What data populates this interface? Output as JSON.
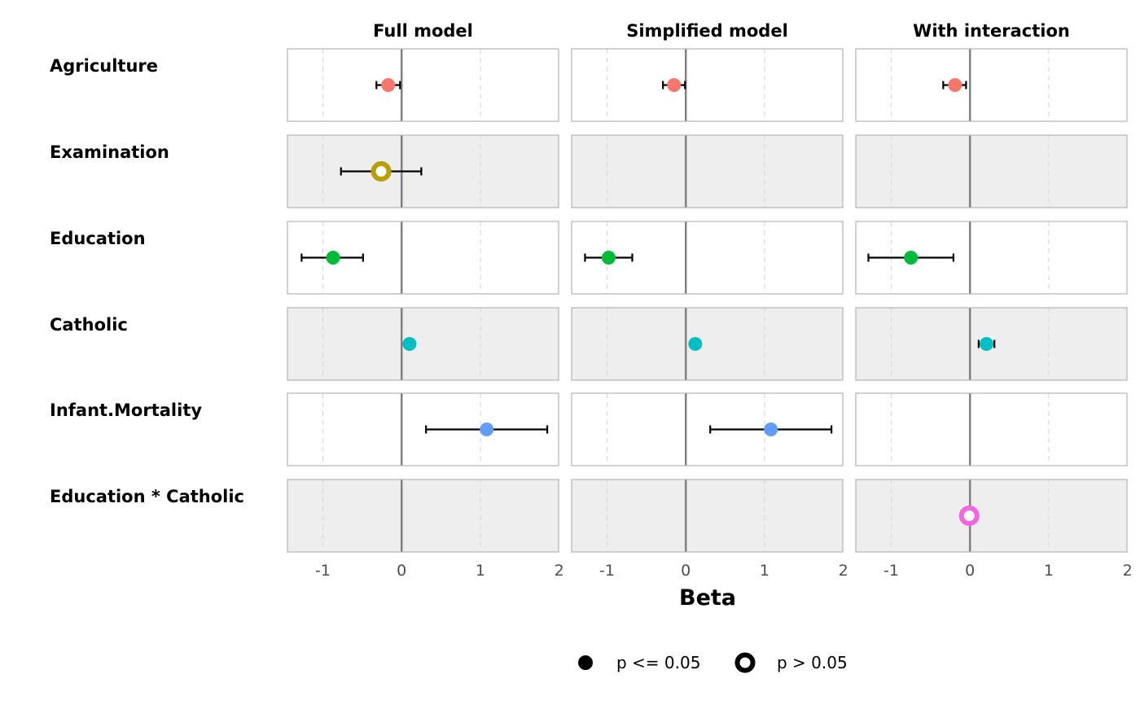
{
  "chart_data": {
    "type": "scatter",
    "subtype": "coefficient-plot-faceted",
    "xlabel": "Beta",
    "xlim": [
      -1.45,
      2
    ],
    "x_ticks": [
      "-1",
      "0",
      "1",
      "2"
    ],
    "x_tick_values": [
      -1,
      0,
      1,
      2
    ],
    "reference_line": 0,
    "models": [
      "Full model",
      "Simplified model",
      "With interaction"
    ],
    "terms": [
      "Agriculture",
      "Examination",
      "Education",
      "Catholic",
      "Infant.Mortality",
      "Education * Catholic"
    ],
    "term_colors": {
      "Agriculture": "#f8766d",
      "Examination": "#b79f00",
      "Education": "#00ba38",
      "Catholic": "#00bfc4",
      "Infant.Mortality": "#619cff",
      "Education * Catholic": "#f564e3"
    },
    "row_backgrounds": [
      "#ffffff",
      "#eeeeee",
      "#ffffff",
      "#eeeeee",
      "#ffffff",
      "#eeeeee"
    ],
    "estimates": [
      {
        "model": "Full model",
        "term": "Agriculture",
        "beta": -0.17,
        "lower": -0.32,
        "upper": -0.02,
        "significant": true
      },
      {
        "model": "Full model",
        "term": "Examination",
        "beta": -0.26,
        "lower": -0.77,
        "upper": 0.25,
        "significant": false
      },
      {
        "model": "Full model",
        "term": "Education",
        "beta": -0.87,
        "lower": -1.27,
        "upper": -0.49,
        "significant": true
      },
      {
        "model": "Full model",
        "term": "Catholic",
        "beta": 0.1,
        "lower": 0.04,
        "upper": 0.16,
        "significant": true
      },
      {
        "model": "Full model",
        "term": "Infant.Mortality",
        "beta": 1.08,
        "lower": 0.31,
        "upper": 1.85,
        "significant": true
      },
      {
        "model": "Simplified model",
        "term": "Agriculture",
        "beta": -0.15,
        "lower": -0.29,
        "upper": -0.01,
        "significant": true
      },
      {
        "model": "Simplified model",
        "term": "Education",
        "beta": -0.98,
        "lower": -1.28,
        "upper": -0.68,
        "significant": true
      },
      {
        "model": "Simplified model",
        "term": "Catholic",
        "beta": 0.12,
        "lower": 0.07,
        "upper": 0.18,
        "significant": true
      },
      {
        "model": "Simplified model",
        "term": "Infant.Mortality",
        "beta": 1.08,
        "lower": 0.31,
        "upper": 1.85,
        "significant": true
      },
      {
        "model": "With interaction",
        "term": "Agriculture",
        "beta": -0.19,
        "lower": -0.34,
        "upper": -0.05,
        "significant": true
      },
      {
        "model": "With interaction",
        "term": "Education",
        "beta": -0.75,
        "lower": -1.29,
        "upper": -0.21,
        "significant": true
      },
      {
        "model": "With interaction",
        "term": "Catholic",
        "beta": 0.21,
        "lower": 0.11,
        "upper": 0.31,
        "significant": true
      },
      {
        "model": "With interaction",
        "term": "Education * Catholic",
        "beta": -0.01,
        "lower": -0.02,
        "upper": 0.01,
        "significant": false
      }
    ],
    "legend": {
      "position": "bottom",
      "items": [
        {
          "label": "p <= 0.05",
          "shape": "filled-circle"
        },
        {
          "label": "p > 0.05",
          "shape": "open-circle"
        }
      ]
    },
    "grid": {
      "major_vertical": "dashed",
      "minor": false
    }
  }
}
